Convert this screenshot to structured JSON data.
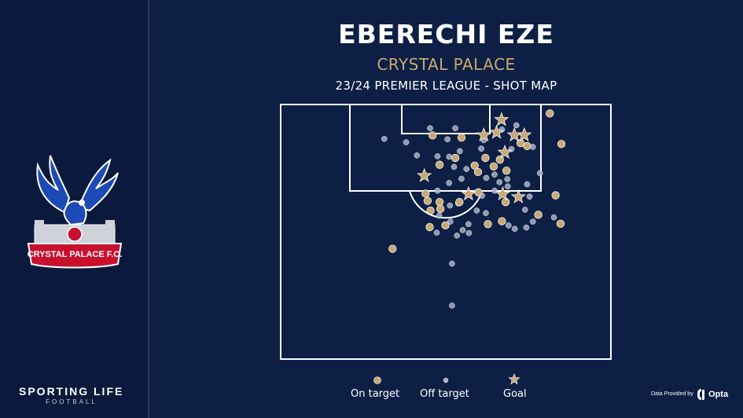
{
  "header": {
    "title": "EBERECHI EZE",
    "subtitle": "CRYSTAL PALACE",
    "caption": "23/24 PREMIER LEAGUE - SHOT MAP"
  },
  "sidebar": {
    "crest_text": "CRYSTAL PALACE F.C.",
    "brand": "SPORTING LIFE",
    "brand_sub": "FOOTBALL"
  },
  "footer": {
    "provider_label": "Data Provided by",
    "provider_name": "Opta"
  },
  "colors": {
    "background": "#0d1f44",
    "on_target": "#c8a975",
    "off_target": "#a8b0c6",
    "goal": "#c8a975",
    "lines": "#ffffff"
  },
  "chart_data": {
    "type": "scatter",
    "title": "EBERECHI EZE",
    "subtitle": "CRYSTAL PALACE",
    "caption": "23/24 PREMIER LEAGUE - SHOT MAP",
    "legend": [
      {
        "name": "On target",
        "marker": "circle"
      },
      {
        "name": "Off target",
        "marker": "small-circle"
      },
      {
        "name": "Goal",
        "marker": "star"
      }
    ],
    "legend_position": "bottom",
    "shots": {
      "goal": [
        [
          53.5,
          3.6
        ],
        [
          52.3,
          6.6
        ],
        [
          49.2,
          7.2
        ],
        [
          59.0,
          7.2
        ],
        [
          56.6,
          7.2
        ],
        [
          54.3,
          11.3
        ],
        [
          34.8,
          16.8
        ],
        [
          53.8,
          21.1
        ],
        [
          45.5,
          21.1
        ],
        [
          57.6,
          21.8
        ]
      ],
      "on_target": [
        [
          65.2,
          2.1
        ],
        [
          36.8,
          7.3
        ],
        [
          43.8,
          7.8
        ],
        [
          58.1,
          9.1
        ],
        [
          59.7,
          9.8
        ],
        [
          68.0,
          9.3
        ],
        [
          42.3,
          12.6
        ],
        [
          49.6,
          12.6
        ],
        [
          53.1,
          13.0
        ],
        [
          38.5,
          14.2
        ],
        [
          47.0,
          14.4
        ],
        [
          51.6,
          14.6
        ],
        [
          54.7,
          15.6
        ],
        [
          47.8,
          15.9
        ],
        [
          35.1,
          21.0
        ],
        [
          66.6,
          21.4
        ],
        [
          62.4,
          26.0
        ],
        [
          35.6,
          22.7
        ],
        [
          38.5,
          23.0
        ],
        [
          47.9,
          20.7
        ],
        [
          36.3,
          25.0
        ],
        [
          43.3,
          23.0
        ],
        [
          54.5,
          23.0
        ],
        [
          38.7,
          24.6
        ],
        [
          50.2,
          28.2
        ],
        [
          53.6,
          27.5
        ],
        [
          27.1,
          34.0
        ],
        [
          39.9,
          28.5
        ],
        [
          36.1,
          28.9
        ],
        [
          67.8,
          28.1
        ]
      ],
      "off_target": [
        [
          36.2,
          5.6
        ],
        [
          42.3,
          5.6
        ],
        [
          57.1,
          4.9
        ],
        [
          53.6,
          5.9
        ],
        [
          25.1,
          8.1
        ],
        [
          30.4,
          8.9
        ],
        [
          40.4,
          8.2
        ],
        [
          43.4,
          11.0
        ],
        [
          48.6,
          10.4
        ],
        [
          49.2,
          8.4
        ],
        [
          55.9,
          10.5
        ],
        [
          61.1,
          10.0
        ],
        [
          33.0,
          12.0
        ],
        [
          38.0,
          12.2
        ],
        [
          40.8,
          12.3
        ],
        [
          42.0,
          14.7
        ],
        [
          45.0,
          15.2
        ],
        [
          51.8,
          16.5
        ],
        [
          54.9,
          17.6
        ],
        [
          40.8,
          18.5
        ],
        [
          43.8,
          17.5
        ],
        [
          49.8,
          17.3
        ],
        [
          53.0,
          18.3
        ],
        [
          62.8,
          16.2
        ],
        [
          38.0,
          20.3
        ],
        [
          51.8,
          20.3
        ],
        [
          55.0,
          19.3
        ],
        [
          59.7,
          18.8
        ],
        [
          60.3,
          21.7
        ],
        [
          48.8,
          21.5
        ],
        [
          43.0,
          23.3
        ],
        [
          41.0,
          23.8
        ],
        [
          38.4,
          26.2
        ],
        [
          47.5,
          25.0
        ],
        [
          59.2,
          24.8
        ],
        [
          49.7,
          25.6
        ],
        [
          41.1,
          27.6
        ],
        [
          45.5,
          28.2
        ],
        [
          61.1,
          27.6
        ],
        [
          55.2,
          28.5
        ],
        [
          56.7,
          29.3
        ],
        [
          59.5,
          29.0
        ],
        [
          37.8,
          30.2
        ],
        [
          42.7,
          30.9
        ],
        [
          66.2,
          26.6
        ],
        [
          44.1,
          29.6
        ],
        [
          45.6,
          30.3
        ],
        [
          41.5,
          37.5
        ],
        [
          41.5,
          47.4
        ]
      ]
    },
    "pitch": {
      "view": "half-pitch, attacking goal at top",
      "markings": [
        "penalty-area",
        "six-yard-box",
        "penalty-arc"
      ]
    }
  }
}
